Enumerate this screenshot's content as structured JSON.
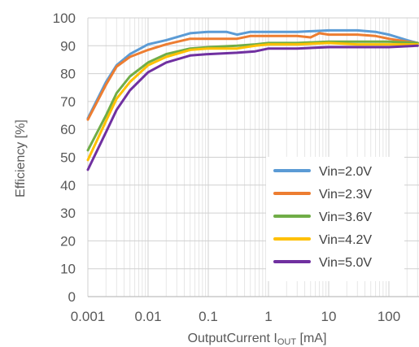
{
  "chart_data": {
    "type": "line",
    "x_scale": "log",
    "xlim": [
      0.001,
      300
    ],
    "ylim": [
      0,
      100
    ],
    "x_ticks": [
      0.001,
      0.01,
      0.1,
      1,
      10,
      100
    ],
    "x_tick_labels": [
      "0.001",
      "0.01",
      "0.1",
      "1",
      "10",
      "100"
    ],
    "y_ticks": [
      0,
      10,
      20,
      30,
      40,
      50,
      60,
      70,
      80,
      90,
      100
    ],
    "y_tick_labels": [
      "0",
      "10",
      "20",
      "30",
      "40",
      "50",
      "60",
      "70",
      "80",
      "90",
      "100"
    ],
    "xlabel": {
      "main": "OutputCurrent  I",
      "subscript": "OUT",
      "unit": " [mA]"
    },
    "ylabel": "Efficiency [%]",
    "grid": true,
    "legend": "bottom-right",
    "series": [
      {
        "name": "Vin=2.0V",
        "color": "#5b9bd5",
        "points": [
          [
            0.001,
            64
          ],
          [
            0.002,
            77
          ],
          [
            0.003,
            83
          ],
          [
            0.005,
            87
          ],
          [
            0.01,
            90.5
          ],
          [
            0.02,
            92
          ],
          [
            0.05,
            94.5
          ],
          [
            0.1,
            95
          ],
          [
            0.2,
            95
          ],
          [
            0.3,
            94
          ],
          [
            0.5,
            95
          ],
          [
            1,
            95
          ],
          [
            3,
            95
          ],
          [
            10,
            95.5
          ],
          [
            30,
            95.5
          ],
          [
            60,
            95
          ],
          [
            100,
            94
          ],
          [
            200,
            92
          ],
          [
            300,
            91
          ]
        ]
      },
      {
        "name": "Vin=2.3V",
        "color": "#ed7d31",
        "points": [
          [
            0.001,
            63.5
          ],
          [
            0.002,
            76
          ],
          [
            0.003,
            82.5
          ],
          [
            0.005,
            86
          ],
          [
            0.01,
            88.5
          ],
          [
            0.02,
            90.5
          ],
          [
            0.05,
            92.5
          ],
          [
            0.1,
            92.5
          ],
          [
            0.3,
            92.5
          ],
          [
            0.5,
            93.5
          ],
          [
            1,
            93.5
          ],
          [
            3,
            93.5
          ],
          [
            5,
            93
          ],
          [
            7,
            94.5
          ],
          [
            10,
            94
          ],
          [
            30,
            94
          ],
          [
            60,
            93.5
          ],
          [
            100,
            92.5
          ],
          [
            200,
            91.5
          ],
          [
            300,
            91
          ]
        ]
      },
      {
        "name": "Vin=3.6V",
        "color": "#70ad47",
        "points": [
          [
            0.001,
            52.5
          ],
          [
            0.002,
            65
          ],
          [
            0.003,
            73
          ],
          [
            0.005,
            79
          ],
          [
            0.01,
            84
          ],
          [
            0.02,
            87
          ],
          [
            0.05,
            89
          ],
          [
            0.1,
            89.5
          ],
          [
            0.3,
            90
          ],
          [
            0.6,
            90.5
          ],
          [
            1,
            91
          ],
          [
            3,
            91
          ],
          [
            10,
            91.5
          ],
          [
            30,
            91.5
          ],
          [
            100,
            91.5
          ],
          [
            300,
            91
          ]
        ]
      },
      {
        "name": "Vin=4.2V",
        "color": "#ffc000",
        "points": [
          [
            0.001,
            49
          ],
          [
            0.002,
            63
          ],
          [
            0.003,
            71
          ],
          [
            0.005,
            77
          ],
          [
            0.01,
            83
          ],
          [
            0.02,
            86
          ],
          [
            0.05,
            88.5
          ],
          [
            0.1,
            89
          ],
          [
            0.3,
            89
          ],
          [
            0.6,
            90
          ],
          [
            1,
            90.5
          ],
          [
            3,
            90.5
          ],
          [
            10,
            91
          ],
          [
            30,
            90.5
          ],
          [
            100,
            90.5
          ],
          [
            300,
            90.5
          ]
        ]
      },
      {
        "name": "Vin=5.0V",
        "color": "#7030a0",
        "points": [
          [
            0.001,
            45.5
          ],
          [
            0.002,
            59
          ],
          [
            0.003,
            67
          ],
          [
            0.005,
            74
          ],
          [
            0.01,
            80.5
          ],
          [
            0.02,
            84
          ],
          [
            0.05,
            86.5
          ],
          [
            0.1,
            87
          ],
          [
            0.3,
            87.5
          ],
          [
            0.6,
            88
          ],
          [
            1,
            89
          ],
          [
            3,
            89
          ],
          [
            10,
            89.5
          ],
          [
            30,
            89.5
          ],
          [
            100,
            89.5
          ],
          [
            300,
            90
          ]
        ]
      }
    ]
  }
}
